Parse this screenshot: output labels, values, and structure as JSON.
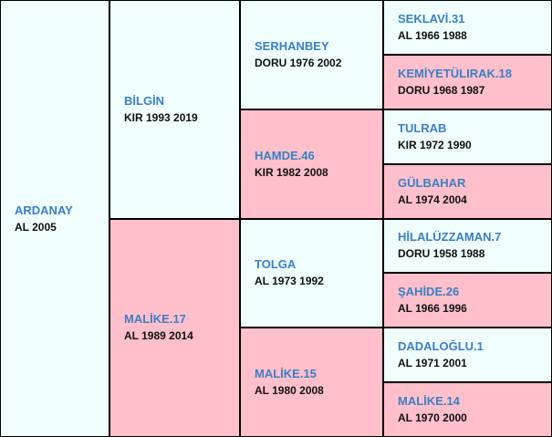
{
  "horse": {
    "name": "ARDANAY",
    "info": "AL 2005"
  },
  "gen1": [
    {
      "name": "BİLGİN",
      "info": "KIR 1993 2019"
    },
    {
      "name": "MALİKE.17",
      "info": "AL 1989 2014"
    }
  ],
  "gen2": [
    {
      "name": "SERHANBEY",
      "info": "DORU 1976 2002"
    },
    {
      "name": "HAMDE.46",
      "info": "KIR 1982 2008"
    },
    {
      "name": "TOLGA",
      "info": "AL 1973 1992"
    },
    {
      "name": "MALİKE.15",
      "info": "AL 1980 2008"
    }
  ],
  "gen3": [
    {
      "name": "SEKLAVİ.31",
      "info": "AL 1966 1988"
    },
    {
      "name": "KEMİYETÜLIRAK.18",
      "info": "DORU 1968 1987"
    },
    {
      "name": "TULRAB",
      "info": "KIR 1972 1990"
    },
    {
      "name": "GÜLBAHAR",
      "info": "AL 1974 2004"
    },
    {
      "name": "HİLALÜZZAMAN.7",
      "info": "DORU 1958 1988"
    },
    {
      "name": "ŞAHİDE.26",
      "info": "AL 1966 1996"
    },
    {
      "name": "DADALOĞLU.1",
      "info": "AL 1971 2001"
    },
    {
      "name": "MALİKE.14",
      "info": "AL 1970 2000"
    }
  ]
}
